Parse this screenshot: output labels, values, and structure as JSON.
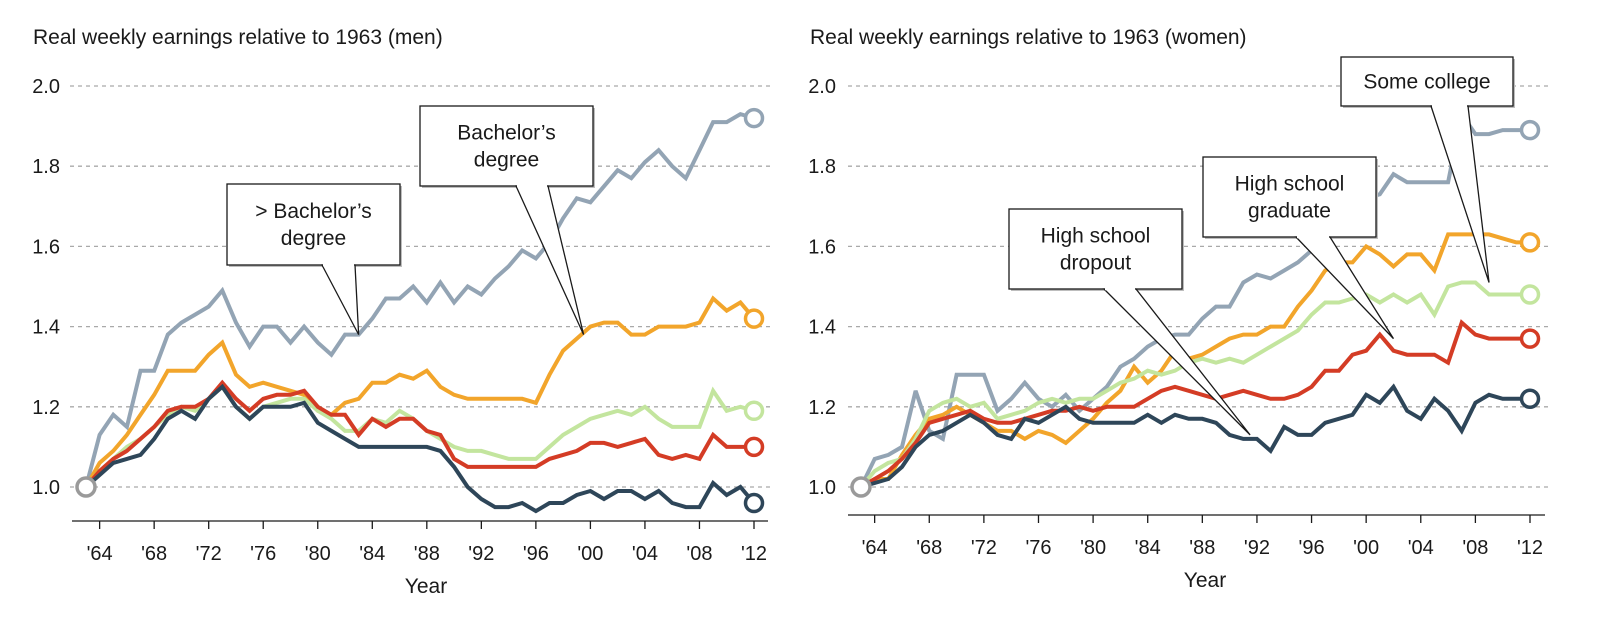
{
  "chart_data": [
    {
      "type": "line",
      "title": "Real weekly earnings relative to 1963 (men)",
      "xlabel": "Year",
      "ylabel": "",
      "xlim": [
        1963,
        2012
      ],
      "ylim": [
        0.9,
        2.05
      ],
      "x_ticks": [
        1964,
        1968,
        1972,
        1976,
        1980,
        1984,
        1988,
        1992,
        1996,
        2000,
        2004,
        2008,
        2012
      ],
      "x_tick_labels": [
        "'64",
        "'68",
        "'72",
        "'76",
        "'80",
        "'84",
        "'88",
        "'92",
        "'96",
        "'00",
        "'04",
        "'08",
        "'12"
      ],
      "y_ticks": [
        1.0,
        1.2,
        1.4,
        1.6,
        1.8,
        2.0
      ],
      "y_tick_labels": [
        "1.0",
        "1.2",
        "1.4",
        "1.6",
        "1.8",
        "2.0"
      ],
      "grid": "horizontal dashed",
      "x": [
        1963,
        1964,
        1965,
        1966,
        1967,
        1968,
        1969,
        1970,
        1971,
        1972,
        1973,
        1974,
        1975,
        1976,
        1977,
        1978,
        1979,
        1980,
        1981,
        1982,
        1983,
        1984,
        1985,
        1986,
        1987,
        1988,
        1989,
        1990,
        1991,
        1992,
        1993,
        1994,
        1995,
        1996,
        1997,
        1998,
        1999,
        2000,
        2001,
        2002,
        2003,
        2004,
        2005,
        2006,
        2007,
        2008,
        2009,
        2010,
        2011,
        2012
      ],
      "series": [
        {
          "name": "> Bachelor's degree",
          "color": "#93a4b4",
          "values": [
            1.0,
            1.13,
            1.18,
            1.15,
            1.29,
            1.29,
            1.38,
            1.41,
            1.43,
            1.45,
            1.49,
            1.41,
            1.35,
            1.4,
            1.4,
            1.36,
            1.4,
            1.36,
            1.33,
            1.38,
            1.38,
            1.42,
            1.47,
            1.47,
            1.5,
            1.46,
            1.51,
            1.46,
            1.5,
            1.48,
            1.52,
            1.55,
            1.59,
            1.57,
            1.61,
            1.67,
            1.72,
            1.71,
            1.75,
            1.79,
            1.77,
            1.81,
            1.84,
            1.8,
            1.77,
            1.84,
            1.91,
            1.91,
            1.93,
            1.92
          ]
        },
        {
          "name": "Bachelor's degree",
          "color": "#f2a52b",
          "values": [
            1.0,
            1.06,
            1.09,
            1.13,
            1.18,
            1.23,
            1.29,
            1.29,
            1.29,
            1.33,
            1.36,
            1.28,
            1.25,
            1.26,
            1.25,
            1.24,
            1.23,
            1.19,
            1.18,
            1.21,
            1.22,
            1.26,
            1.26,
            1.28,
            1.27,
            1.29,
            1.25,
            1.23,
            1.22,
            1.22,
            1.22,
            1.22,
            1.22,
            1.21,
            1.28,
            1.34,
            1.37,
            1.4,
            1.41,
            1.41,
            1.38,
            1.38,
            1.4,
            1.4,
            1.4,
            1.41,
            1.47,
            1.44,
            1.46,
            1.42
          ]
        },
        {
          "name": "Some college",
          "color": "#c3e59e",
          "values": [
            1.0,
            1.04,
            1.07,
            1.1,
            1.12,
            1.15,
            1.18,
            1.2,
            1.19,
            1.22,
            1.25,
            1.2,
            1.17,
            1.2,
            1.21,
            1.22,
            1.22,
            1.19,
            1.17,
            1.14,
            1.14,
            1.17,
            1.16,
            1.19,
            1.17,
            1.14,
            1.12,
            1.1,
            1.09,
            1.09,
            1.08,
            1.07,
            1.07,
            1.07,
            1.1,
            1.13,
            1.15,
            1.17,
            1.18,
            1.19,
            1.18,
            1.2,
            1.17,
            1.15,
            1.15,
            1.15,
            1.24,
            1.19,
            1.2,
            1.19
          ]
        },
        {
          "name": "High school graduate",
          "color": "#d43c25",
          "values": [
            1.0,
            1.04,
            1.07,
            1.09,
            1.12,
            1.15,
            1.19,
            1.2,
            1.2,
            1.22,
            1.26,
            1.22,
            1.19,
            1.22,
            1.23,
            1.23,
            1.24,
            1.2,
            1.18,
            1.18,
            1.13,
            1.17,
            1.15,
            1.17,
            1.17,
            1.14,
            1.13,
            1.07,
            1.05,
            1.05,
            1.05,
            1.05,
            1.05,
            1.05,
            1.07,
            1.08,
            1.09,
            1.11,
            1.11,
            1.1,
            1.11,
            1.12,
            1.08,
            1.07,
            1.08,
            1.07,
            1.13,
            1.1,
            1.1,
            1.1
          ]
        },
        {
          "name": "High school dropout",
          "color": "#2e4659",
          "values": [
            1.0,
            1.03,
            1.06,
            1.07,
            1.08,
            1.12,
            1.17,
            1.19,
            1.17,
            1.22,
            1.25,
            1.2,
            1.17,
            1.2,
            1.2,
            1.2,
            1.21,
            1.16,
            1.14,
            1.12,
            1.1,
            1.1,
            1.1,
            1.1,
            1.1,
            1.1,
            1.09,
            1.05,
            1.0,
            0.97,
            0.95,
            0.95,
            0.96,
            0.94,
            0.96,
            0.96,
            0.98,
            0.99,
            0.97,
            0.99,
            0.99,
            0.97,
            0.99,
            0.96,
            0.95,
            0.95,
            1.01,
            0.98,
            1.0,
            0.96
          ]
        }
      ],
      "annotations": [
        {
          "text": [
            "> Bachelor’s",
            "degree"
          ],
          "points_to": {
            "x": 1983,
            "y": 1.38
          }
        },
        {
          "text": [
            "Bachelor’s",
            "degree"
          ],
          "points_to": {
            "x": 1999.5,
            "y": 1.38
          }
        }
      ]
    },
    {
      "type": "line",
      "title": "Real weekly earnings relative to 1963 (women)",
      "xlabel": "Year",
      "ylabel": "",
      "xlim": [
        1963,
        2012
      ],
      "ylim": [
        0.9,
        2.05
      ],
      "x_ticks": [
        1964,
        1968,
        1972,
        1976,
        1980,
        1984,
        1988,
        1992,
        1996,
        2000,
        2004,
        2008,
        2012
      ],
      "x_tick_labels": [
        "'64",
        "'68",
        "'72",
        "'76",
        "'80",
        "'84",
        "'88",
        "'92",
        "'96",
        "'00",
        "'04",
        "'08",
        "'12"
      ],
      "y_ticks": [
        1.0,
        1.2,
        1.4,
        1.6,
        1.8,
        2.0
      ],
      "y_tick_labels": [
        "1.0",
        "1.2",
        "1.4",
        "1.6",
        "1.8",
        "2.0"
      ],
      "grid": "horizontal dashed",
      "x": [
        1963,
        1964,
        1965,
        1966,
        1967,
        1968,
        1969,
        1970,
        1971,
        1972,
        1973,
        1974,
        1975,
        1976,
        1977,
        1978,
        1979,
        1980,
        1981,
        1982,
        1983,
        1984,
        1985,
        1986,
        1987,
        1988,
        1989,
        1990,
        1991,
        1992,
        1993,
        1994,
        1995,
        1996,
        1997,
        1998,
        1999,
        2000,
        2001,
        2002,
        2003,
        2004,
        2005,
        2006,
        2007,
        2008,
        2009,
        2010,
        2011,
        2012
      ],
      "series": [
        {
          "name": "> Bachelor's degree",
          "color": "#93a4b4",
          "values": [
            1.0,
            1.07,
            1.08,
            1.1,
            1.24,
            1.14,
            1.12,
            1.28,
            1.28,
            1.28,
            1.19,
            1.22,
            1.26,
            1.22,
            1.2,
            1.23,
            1.19,
            1.22,
            1.25,
            1.3,
            1.32,
            1.35,
            1.37,
            1.38,
            1.38,
            1.42,
            1.45,
            1.45,
            1.51,
            1.53,
            1.52,
            1.54,
            1.56,
            1.59,
            1.62,
            1.66,
            1.72,
            1.72,
            1.73,
            1.78,
            1.76,
            1.76,
            1.76,
            1.76,
            1.93,
            1.88,
            1.88,
            1.89,
            1.89,
            1.89
          ]
        },
        {
          "name": "Bachelor's degree",
          "color": "#f2a52b",
          "values": [
            1.0,
            1.02,
            1.02,
            1.08,
            1.13,
            1.17,
            1.18,
            1.2,
            1.18,
            1.16,
            1.14,
            1.14,
            1.12,
            1.14,
            1.13,
            1.11,
            1.14,
            1.17,
            1.21,
            1.24,
            1.3,
            1.26,
            1.29,
            1.34,
            1.32,
            1.33,
            1.35,
            1.37,
            1.38,
            1.38,
            1.4,
            1.4,
            1.45,
            1.49,
            1.54,
            1.56,
            1.56,
            1.6,
            1.58,
            1.55,
            1.58,
            1.58,
            1.54,
            1.63,
            1.63,
            1.63,
            1.63,
            1.62,
            1.61,
            1.61
          ]
        },
        {
          "name": "Some college",
          "color": "#c3e59e",
          "values": [
            1.0,
            1.04,
            1.06,
            1.07,
            1.12,
            1.19,
            1.21,
            1.22,
            1.2,
            1.21,
            1.17,
            1.18,
            1.19,
            1.21,
            1.22,
            1.21,
            1.22,
            1.22,
            1.24,
            1.26,
            1.27,
            1.29,
            1.28,
            1.29,
            1.31,
            1.32,
            1.31,
            1.32,
            1.31,
            1.33,
            1.35,
            1.37,
            1.39,
            1.43,
            1.46,
            1.46,
            1.47,
            1.48,
            1.46,
            1.48,
            1.46,
            1.48,
            1.43,
            1.5,
            1.51,
            1.51,
            1.48,
            1.48,
            1.48,
            1.48
          ]
        },
        {
          "name": "High school graduate",
          "color": "#d43c25",
          "values": [
            1.0,
            1.02,
            1.04,
            1.07,
            1.11,
            1.16,
            1.17,
            1.18,
            1.19,
            1.17,
            1.16,
            1.16,
            1.17,
            1.18,
            1.19,
            1.19,
            1.2,
            1.19,
            1.2,
            1.2,
            1.2,
            1.22,
            1.24,
            1.25,
            1.24,
            1.23,
            1.22,
            1.23,
            1.24,
            1.23,
            1.22,
            1.22,
            1.23,
            1.25,
            1.29,
            1.29,
            1.33,
            1.34,
            1.38,
            1.34,
            1.33,
            1.33,
            1.33,
            1.31,
            1.41,
            1.38,
            1.37,
            1.37,
            1.37,
            1.37
          ]
        },
        {
          "name": "High school dropout",
          "color": "#2e4659",
          "values": [
            1.0,
            1.01,
            1.02,
            1.05,
            1.1,
            1.13,
            1.14,
            1.16,
            1.18,
            1.16,
            1.13,
            1.12,
            1.17,
            1.16,
            1.18,
            1.2,
            1.17,
            1.16,
            1.16,
            1.16,
            1.16,
            1.18,
            1.16,
            1.18,
            1.17,
            1.17,
            1.16,
            1.13,
            1.12,
            1.12,
            1.09,
            1.15,
            1.13,
            1.13,
            1.16,
            1.17,
            1.18,
            1.23,
            1.21,
            1.25,
            1.19,
            1.17,
            1.22,
            1.19,
            1.14,
            1.21,
            1.23,
            1.22,
            1.22,
            1.22
          ]
        }
      ],
      "annotations": [
        {
          "text": [
            "High school",
            "dropout"
          ],
          "points_to": {
            "x": 1991.5,
            "y": 1.13
          }
        },
        {
          "text": [
            "High school",
            "graduate"
          ],
          "points_to": {
            "x": 2002,
            "y": 1.37
          }
        },
        {
          "text": [
            "Some college"
          ],
          "points_to": {
            "x": 2009,
            "y": 1.51
          }
        }
      ]
    }
  ]
}
